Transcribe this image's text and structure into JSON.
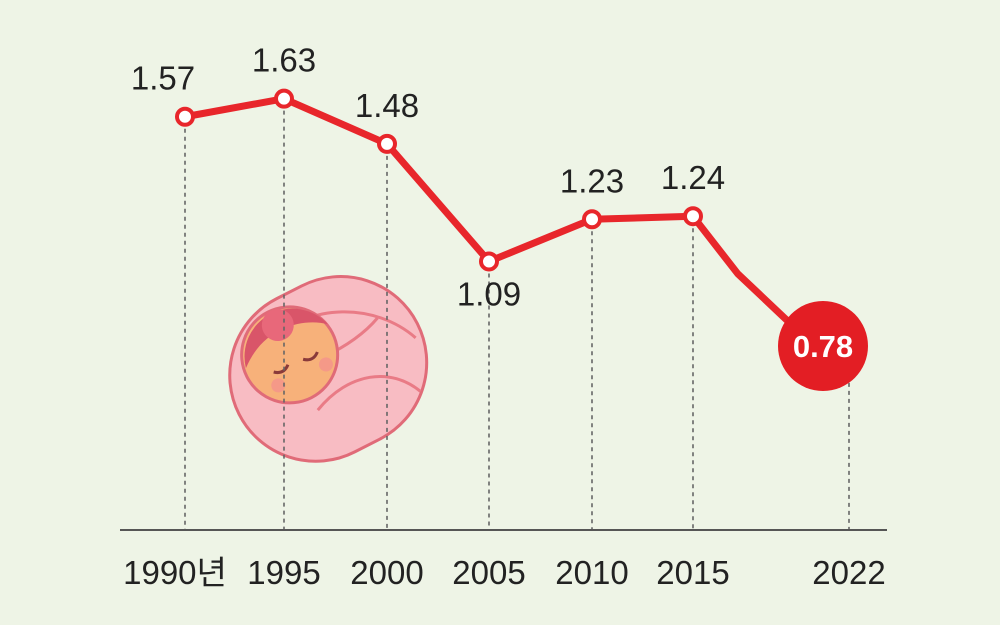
{
  "chart_data": {
    "type": "line",
    "title": "",
    "xlabel": "",
    "ylabel": "",
    "categories": [
      "1990년",
      "1995",
      "2000",
      "2005",
      "2010",
      "2015",
      "2022"
    ],
    "x": [
      1990,
      1995,
      2000,
      2005,
      2010,
      2015,
      2022
    ],
    "series": [
      {
        "values": [
          1.57,
          1.63,
          1.48,
          1.09,
          1.23,
          1.24,
          0.78
        ],
        "labels": [
          "1.57",
          "1.63",
          "1.48",
          "1.09",
          "1.23",
          "1.24",
          "0.78"
        ],
        "unlabeled_intermediate_points": [
          {
            "x": 2017,
            "y": 1.05
          },
          {
            "x": 2020,
            "y": 0.84
          }
        ]
      }
    ],
    "ylim": [
      0.4,
      1.7
    ],
    "grid": false,
    "highlight": {
      "x": 2022,
      "label": "0.78"
    },
    "colors": {
      "line": "#e8262b",
      "callout": "#e31e24",
      "background": "#eef4e6",
      "axis": "#555555"
    }
  },
  "decoration": {
    "icon": "swaddled-baby-icon"
  }
}
